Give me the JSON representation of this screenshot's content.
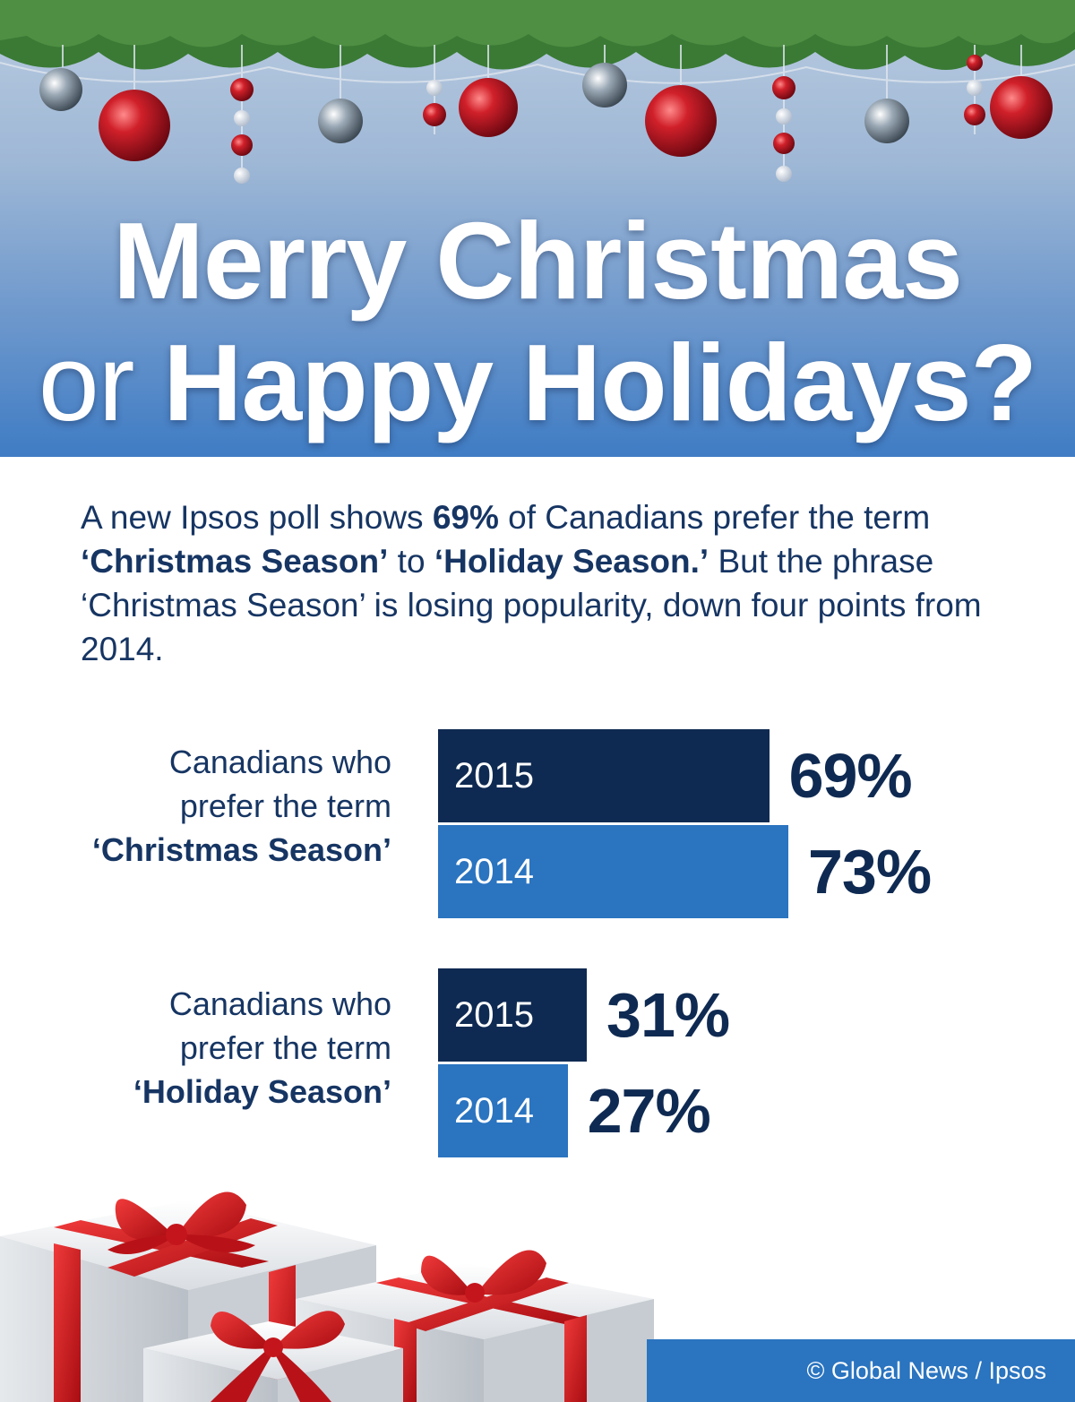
{
  "header": {
    "title_line1": "Merry Christmas",
    "title_or": "or",
    "title_line2_rest": " Happy Holidays?"
  },
  "intro": {
    "t1": "A new Ipsos poll shows ",
    "b1": "69%",
    "t2": " of Canadians prefer the term ",
    "b2": "‘Christmas Season’",
    "t3": " to ",
    "b3": "‘Holiday Season.’",
    "t4": " But the phrase ‘Christmas Season’ is losing popularity, down four points from 2014."
  },
  "chart_data": {
    "type": "bar",
    "orientation": "horizontal",
    "groups": [
      {
        "label_line1": "Canadians who",
        "label_line2": "prefer the term",
        "term": "‘Christmas Season’",
        "bars": [
          {
            "year": "2015",
            "value": 69,
            "value_label": "69%"
          },
          {
            "year": "2014",
            "value": 73,
            "value_label": "73%"
          }
        ]
      },
      {
        "label_line1": "Canadians who",
        "label_line2": "prefer the term",
        "term": "‘Holiday Season’",
        "bars": [
          {
            "year": "2015",
            "value": 31,
            "value_label": "31%"
          },
          {
            "year": "2014",
            "value": 27,
            "value_label": "27%"
          }
        ]
      }
    ],
    "series_colors": {
      "2015": "#0f2a52",
      "2014": "#2a74c0"
    }
  },
  "footer": {
    "credit": "© Global News / Ipsos"
  }
}
